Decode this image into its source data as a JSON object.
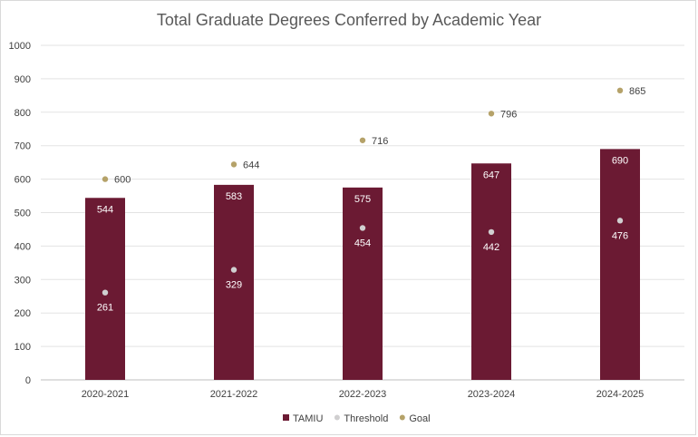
{
  "chart_data": {
    "type": "bar",
    "title": "Total Graduate Degrees Conferred by Academic Year",
    "categories": [
      "2020-2021",
      "2021-2022",
      "2022-2023",
      "2023-2024",
      "2024-2025"
    ],
    "series": [
      {
        "name": "TAMIU",
        "kind": "bar",
        "values": [
          544,
          583,
          575,
          647,
          690
        ],
        "color": "#6b1a33"
      },
      {
        "name": "Threshold",
        "kind": "marker",
        "values": [
          261,
          329,
          454,
          442,
          476
        ],
        "color": "#d0cfd0"
      },
      {
        "name": "Goal",
        "kind": "marker",
        "values": [
          600,
          644,
          716,
          796,
          865
        ],
        "color": "#b5a269"
      }
    ],
    "ylim": [
      0,
      1000
    ],
    "yticks": [
      "0",
      "100",
      "200",
      "300",
      "400",
      "500",
      "600",
      "700",
      "800",
      "900",
      "1000"
    ],
    "grid": true,
    "legend": "bottom"
  }
}
